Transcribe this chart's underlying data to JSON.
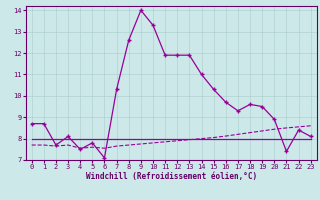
{
  "xlabel": "Windchill (Refroidissement éolien,°C)",
  "background_color": "#cce8e8",
  "line_color": "#990099",
  "xlim": [
    -0.5,
    23.5
  ],
  "ylim": [
    7,
    14.2
  ],
  "yticks": [
    7,
    8,
    9,
    10,
    11,
    12,
    13,
    14
  ],
  "xticks": [
    0,
    1,
    2,
    3,
    4,
    5,
    6,
    7,
    8,
    9,
    10,
    11,
    12,
    13,
    14,
    15,
    16,
    17,
    18,
    19,
    20,
    21,
    22,
    23
  ],
  "series": [
    {
      "x": [
        0,
        1,
        2,
        3,
        4,
        5,
        6,
        7,
        8,
        9,
        10,
        11,
        12,
        13,
        14,
        15,
        16,
        17,
        18,
        19,
        20,
        21,
        22,
        23
      ],
      "y": [
        8.7,
        8.7,
        7.7,
        8.1,
        7.5,
        7.8,
        7.1,
        10.3,
        12.6,
        14.0,
        13.3,
        11.9,
        11.9,
        11.9,
        11.0,
        10.3,
        9.7,
        9.3,
        9.6,
        9.5,
        8.9,
        7.4,
        8.4,
        8.1
      ],
      "marker": "+",
      "linestyle": "-",
      "linewidth": 0.9,
      "markersize": 3.5
    },
    {
      "x": [
        0,
        1,
        2,
        3,
        4,
        5,
        6,
        7,
        8,
        9,
        10,
        11,
        12,
        13,
        14,
        15,
        16,
        17,
        18,
        19,
        20,
        21,
        22,
        23
      ],
      "y": [
        8.0,
        8.0,
        8.0,
        8.0,
        8.0,
        8.0,
        8.0,
        8.0,
        8.0,
        8.0,
        8.0,
        8.0,
        8.0,
        8.0,
        8.0,
        8.0,
        8.0,
        8.0,
        8.0,
        8.0,
        8.0,
        8.0,
        8.0,
        8.0
      ],
      "marker": null,
      "linestyle": "-",
      "linewidth": 0.9,
      "markersize": 0
    },
    {
      "x": [
        0,
        1,
        2,
        3,
        4,
        5,
        6,
        7,
        8,
        9,
        10,
        11,
        12,
        13,
        14,
        15,
        16,
        17,
        18,
        19,
        20,
        21,
        22,
        23
      ],
      "y": [
        7.7,
        7.7,
        7.65,
        7.7,
        7.55,
        7.6,
        7.55,
        7.65,
        7.7,
        7.75,
        7.8,
        7.85,
        7.9,
        7.95,
        8.0,
        8.05,
        8.12,
        8.2,
        8.28,
        8.36,
        8.44,
        8.5,
        8.55,
        8.6
      ],
      "marker": null,
      "linestyle": "--",
      "linewidth": 0.8,
      "markersize": 0
    }
  ],
  "tick_fontsize": 5,
  "xlabel_fontsize": 5.5,
  "grid_color": "#aacccc",
  "grid_linewidth": 0.4,
  "spine_color": "#660066"
}
